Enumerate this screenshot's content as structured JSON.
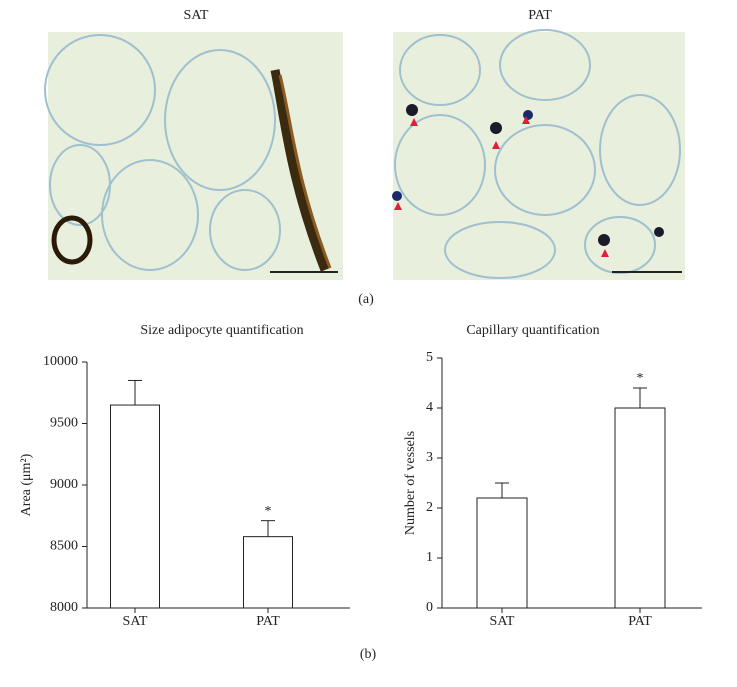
{
  "figure": {
    "panel_a": {
      "images": [
        {
          "label": "SAT"
        },
        {
          "label": "PAT"
        }
      ],
      "caption": "(a)"
    },
    "panel_b": {
      "caption": "(b)"
    }
  },
  "chart_data": [
    {
      "type": "bar",
      "title": "Size adipocyte quantification",
      "y_label": "Area (μm²)",
      "categories": [
        "SAT",
        "PAT"
      ],
      "values": [
        9650,
        8580
      ],
      "errors": [
        200,
        130
      ],
      "color": "#ffffff",
      "ylim": [
        8000,
        10000
      ],
      "yticks": [
        8000,
        8500,
        9000,
        9500,
        10000
      ],
      "annotations": [
        {
          "category": "PAT",
          "text": "*"
        }
      ]
    },
    {
      "type": "bar",
      "title": "Capillary quantification",
      "y_label": "Number of vessels",
      "categories": [
        "SAT",
        "PAT"
      ],
      "values": [
        2.2,
        4.0
      ],
      "errors": [
        0.3,
        0.4
      ],
      "color": "#ffffff",
      "ylim": [
        0,
        5
      ],
      "yticks": [
        0,
        1,
        2,
        3,
        4,
        5
      ],
      "annotations": [
        {
          "category": "PAT",
          "text": "*"
        }
      ]
    }
  ]
}
